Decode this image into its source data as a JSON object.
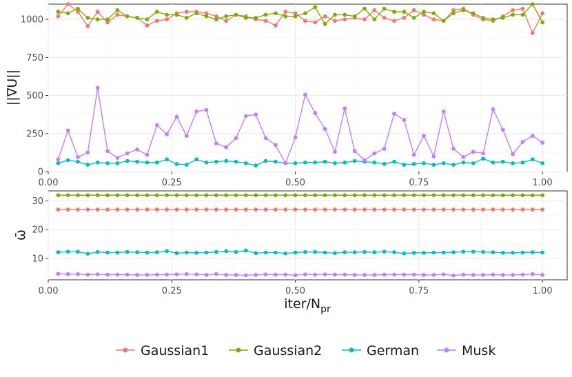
{
  "colors": {
    "Gaussian1": "#F8766D",
    "Gaussian2": "#7CAE00",
    "German": "#00BFC4",
    "Musk": "#C77CFF"
  },
  "chart_data": [
    {
      "type": "line",
      "ylabel": "||∇U||",
      "xlim": [
        0,
        1.05
      ],
      "ylim": [
        0,
        1100
      ],
      "xticks": [
        0.0,
        0.25,
        0.5,
        0.75,
        1.0
      ],
      "xtick_labels": [
        "0.00",
        "0.25",
        "0.50",
        "0.75",
        "1.00"
      ],
      "yticks": [
        0,
        250,
        500,
        750,
        1000
      ],
      "ytick_labels": [
        "0",
        "250",
        "500",
        "750",
        "1000"
      ],
      "x": [
        0.02,
        0.04,
        0.06,
        0.08,
        0.1,
        0.12,
        0.14,
        0.16,
        0.18,
        0.2,
        0.22,
        0.24,
        0.26,
        0.28,
        0.3,
        0.32,
        0.34,
        0.36,
        0.38,
        0.4,
        0.42,
        0.44,
        0.46,
        0.48,
        0.5,
        0.52,
        0.54,
        0.56,
        0.58,
        0.6,
        0.62,
        0.64,
        0.66,
        0.68,
        0.7,
        0.72,
        0.74,
        0.76,
        0.78,
        0.8,
        0.82,
        0.84,
        0.86,
        0.88,
        0.9,
        0.92,
        0.94,
        0.96,
        0.98,
        1.0
      ],
      "series": [
        {
          "name": "Gaussian1",
          "values": [
            1020,
            1100,
            1050,
            955,
            1050,
            980,
            1030,
            1020,
            1010,
            960,
            990,
            1000,
            1040,
            1050,
            1050,
            1040,
            1020,
            990,
            1030,
            1020,
            1000,
            990,
            960,
            1050,
            1040,
            990,
            980,
            1020,
            990,
            1000,
            1010,
            1000,
            1060,
            1010,
            990,
            1010,
            1060,
            1030,
            1000,
            990,
            1060,
            1070,
            1030,
            1000,
            990,
            1020,
            1060,
            1070,
            910,
            1040
          ]
        },
        {
          "name": "Gaussian2",
          "values": [
            1050,
            1040,
            1070,
            1010,
            1000,
            1000,
            1060,
            1020,
            1010,
            1000,
            1050,
            1030,
            1030,
            1010,
            1040,
            1020,
            1000,
            1020,
            1030,
            1010,
            1010,
            1030,
            1040,
            1020,
            1020,
            1040,
            1080,
            970,
            1030,
            1030,
            1020,
            1070,
            1000,
            1070,
            1050,
            1050,
            1010,
            1050,
            1040,
            990,
            1040,
            1060,
            1040,
            1010,
            1000,
            1010,
            1030,
            1030,
            1100,
            980
          ]
        },
        {
          "name": "German",
          "values": [
            55,
            75,
            65,
            45,
            60,
            55,
            55,
            70,
            65,
            60,
            60,
            80,
            50,
            45,
            80,
            60,
            65,
            70,
            65,
            55,
            40,
            70,
            65,
            55,
            55,
            60,
            60,
            65,
            55,
            60,
            70,
            65,
            60,
            50,
            65,
            45,
            50,
            55,
            45,
            55,
            45,
            60,
            55,
            85,
            60,
            65,
            55,
            60,
            80,
            55
          ]
        },
        {
          "name": "Musk",
          "values": [
            80,
            270,
            95,
            125,
            550,
            135,
            90,
            120,
            145,
            110,
            305,
            245,
            360,
            235,
            395,
            405,
            185,
            160,
            220,
            365,
            375,
            220,
            175,
            55,
            225,
            505,
            385,
            280,
            130,
            415,
            135,
            75,
            120,
            150,
            380,
            340,
            110,
            235,
            100,
            395,
            150,
            95,
            130,
            120,
            410,
            275,
            115,
            195,
            235,
            190
          ]
        }
      ]
    },
    {
      "type": "line",
      "ylabel": "ω̄",
      "xlabel_main": "iter/N",
      "xlabel_sub": "pr",
      "xlim": [
        0,
        1.05
      ],
      "ylim": [
        2.5,
        33.5
      ],
      "xticks": [
        0.0,
        0.25,
        0.5,
        0.75,
        1.0
      ],
      "xtick_labels": [
        "0.00",
        "0.25",
        "0.50",
        "0.75",
        "1.00"
      ],
      "yticks": [
        10,
        20,
        30
      ],
      "ytick_labels": [
        "10",
        "20",
        "30"
      ],
      "x": [
        0.02,
        0.04,
        0.06,
        0.08,
        0.1,
        0.12,
        0.14,
        0.16,
        0.18,
        0.2,
        0.22,
        0.24,
        0.26,
        0.28,
        0.3,
        0.32,
        0.34,
        0.36,
        0.38,
        0.4,
        0.42,
        0.44,
        0.46,
        0.48,
        0.5,
        0.52,
        0.54,
        0.56,
        0.58,
        0.6,
        0.62,
        0.64,
        0.66,
        0.68,
        0.7,
        0.72,
        0.74,
        0.76,
        0.78,
        0.8,
        0.82,
        0.84,
        0.86,
        0.88,
        0.9,
        0.92,
        0.94,
        0.96,
        0.98,
        1.0
      ],
      "series": [
        {
          "name": "Gaussian1",
          "values": [
            27,
            27,
            27,
            27,
            27,
            27,
            27,
            27,
            27,
            27,
            27,
            27,
            27,
            27,
            27,
            27,
            27,
            27,
            27,
            27,
            27,
            27,
            27,
            27,
            27,
            27,
            27,
            27,
            27,
            27,
            27,
            27,
            27,
            27,
            27,
            27,
            27,
            27,
            27,
            27,
            27,
            27,
            27,
            27,
            27,
            27,
            27,
            27,
            27,
            27
          ]
        },
        {
          "name": "Gaussian2",
          "values": [
            32,
            32,
            32,
            32,
            32,
            32,
            32,
            32,
            32,
            32,
            32,
            32,
            32,
            32,
            32,
            32,
            32,
            32,
            32,
            32,
            32,
            32,
            32,
            32,
            32,
            32,
            32,
            32,
            32,
            32,
            32,
            32,
            32,
            32,
            32,
            32,
            32,
            32,
            32,
            32,
            32,
            32,
            32,
            32,
            32,
            32,
            32,
            32,
            32,
            32
          ]
        },
        {
          "name": "German",
          "values": [
            12.1,
            12.3,
            12.3,
            11.6,
            12.2,
            12.0,
            12.0,
            12.2,
            12.1,
            12.0,
            12.1,
            12.5,
            11.8,
            12.0,
            11.9,
            12.0,
            12.2,
            12.5,
            12.2,
            12.7,
            11.8,
            12.0,
            12.0,
            11.7,
            12.0,
            12.2,
            12.2,
            12.0,
            11.8,
            12.1,
            12.1,
            12.2,
            12.1,
            12.3,
            12.1,
            11.7,
            11.9,
            11.9,
            12.0,
            12.0,
            12.1,
            12.3,
            12.3,
            12.2,
            12.1,
            11.9,
            11.9,
            12.0,
            12.1,
            12.0
          ]
        },
        {
          "name": "Musk",
          "values": [
            4.6,
            4.5,
            4.5,
            4.3,
            4.4,
            4.3,
            4.3,
            4.3,
            4.2,
            4.2,
            4.3,
            4.3,
            4.4,
            4.5,
            4.4,
            4.2,
            4.5,
            4.2,
            4.2,
            4.1,
            4.2,
            4.4,
            4.3,
            4.3,
            4.1,
            4.4,
            4.3,
            4.4,
            4.3,
            4.3,
            4.2,
            4.2,
            4.2,
            4.3,
            4.3,
            4.3,
            4.3,
            4.2,
            4.2,
            4.4,
            4.0,
            4.3,
            4.2,
            4.2,
            4.3,
            4.2,
            4.2,
            4.3,
            4.5,
            4.2
          ]
        }
      ]
    }
  ],
  "legend": {
    "position": "bottom",
    "entries": [
      "Gaussian1",
      "Gaussian2",
      "German",
      "Musk"
    ]
  }
}
